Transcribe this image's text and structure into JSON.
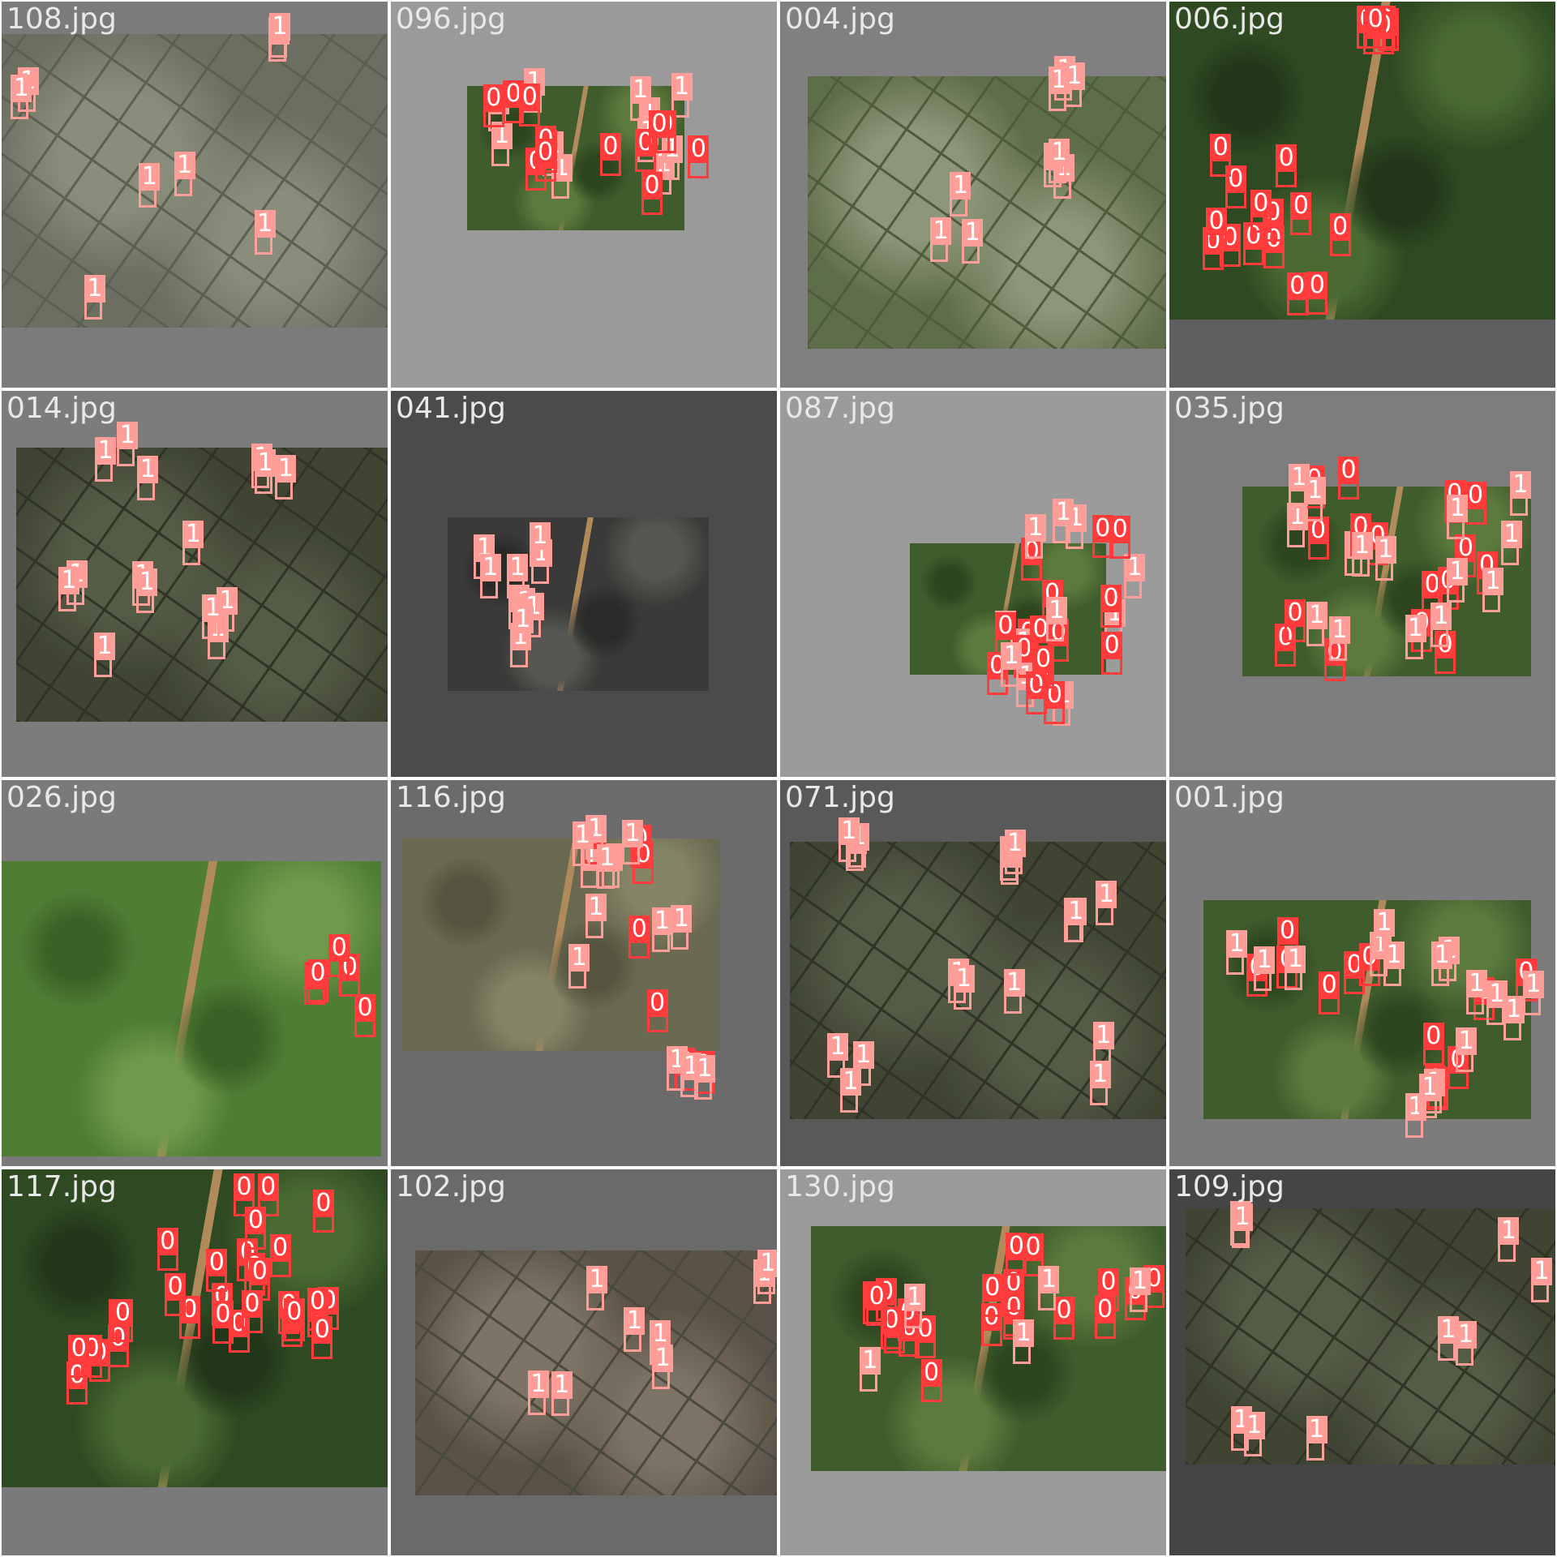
{
  "panel_bg": "#ffffff",
  "classes": {
    "0": {
      "color": "#ff3b3b"
    },
    "1": {
      "color": "#ff9e98"
    }
  },
  "tiles": [
    {
      "name": "108.jpg",
      "bg": "#7b7b7b",
      "scene": "paddy-gray",
      "labels": [
        "1",
        "1",
        "1",
        "1",
        "1",
        "1",
        "1",
        "1"
      ]
    },
    {
      "name": "096.jpg",
      "bg": "#9a9a9a",
      "scene": "village",
      "labels": [
        "1",
        "1",
        "1",
        "1",
        "1",
        "1",
        "1",
        "1",
        "1",
        "1",
        "1",
        "0",
        "0",
        "0",
        "0",
        "0",
        "0",
        "0",
        "0",
        "0",
        "0",
        "0",
        "0",
        "0"
      ]
    },
    {
      "name": "004.jpg",
      "bg": "#808080",
      "scene": "paddy-green",
      "labels": [
        "1",
        "1",
        "1",
        "1",
        "1",
        "1",
        "1",
        "1",
        "1"
      ]
    },
    {
      "name": "006.jpg",
      "bg": "#5e5e5e",
      "scene": "forest",
      "labels": [
        "0",
        "0",
        "0",
        "0",
        "0",
        "0",
        "0",
        "0",
        "0",
        "0",
        "0",
        "0",
        "0",
        "0",
        "0",
        "0",
        "0",
        "0",
        "0",
        "0",
        "0"
      ]
    },
    {
      "name": "014.jpg",
      "bg": "#7c7c7c",
      "scene": "paddy-dark",
      "labels": [
        "1",
        "1",
        "1",
        "1",
        "1",
        "1",
        "1",
        "1",
        "1",
        "1",
        "1",
        "1",
        "1",
        "1",
        "1"
      ]
    },
    {
      "name": "041.jpg",
      "bg": "#4b4b4b",
      "scene": "forest-gray",
      "labels": [
        "1",
        "1",
        "1",
        "1",
        "1",
        "1",
        "1",
        "1",
        "1",
        "1"
      ]
    },
    {
      "name": "087.jpg",
      "bg": "#9b9b9b",
      "scene": "village",
      "labels": [
        "1",
        "1",
        "1",
        "1",
        "0",
        "0",
        "0",
        "0",
        "0",
        "0",
        "0",
        "0",
        "0",
        "1",
        "1",
        "1",
        "0",
        "0",
        "0",
        "0",
        "0",
        "0",
        "0",
        "0",
        "1",
        "1",
        "1",
        "1"
      ]
    },
    {
      "name": "035.jpg",
      "bg": "#7d7d7d",
      "scene": "village",
      "labels": [
        "1",
        "1",
        "1",
        "0",
        "0",
        "0",
        "0",
        "0",
        "0",
        "0",
        "0",
        "0",
        "0",
        "0",
        "0",
        "0",
        "0",
        "0",
        "0",
        "1",
        "1",
        "1",
        "1",
        "1",
        "1",
        "1",
        "1",
        "1",
        "1",
        "1",
        "1"
      ]
    },
    {
      "name": "026.jpg",
      "bg": "#7a7a7a",
      "scene": "green-farm",
      "labels": [
        "0",
        "0",
        "0",
        "0",
        "0"
      ]
    },
    {
      "name": "116.jpg",
      "bg": "#6b6b6b",
      "scene": "scrub",
      "labels": [
        "1",
        "1",
        "1",
        "0",
        "0",
        "0",
        "0",
        "0",
        "0",
        "0",
        "1",
        "1",
        "1",
        "1",
        "1",
        "1",
        "1",
        "1",
        "1",
        "1"
      ]
    },
    {
      "name": "071.jpg",
      "bg": "#595959",
      "scene": "paddy-dark",
      "labels": [
        "1",
        "1",
        "1",
        "1",
        "1",
        "1",
        "1",
        "1",
        "1",
        "1",
        "1",
        "1",
        "1",
        "1",
        "1",
        "1",
        "1"
      ]
    },
    {
      "name": "001.jpg",
      "bg": "#7c7c7c",
      "scene": "village",
      "labels": [
        "0",
        "0",
        "0",
        "0",
        "0",
        "0",
        "0",
        "0",
        "0",
        "0",
        "0",
        "0",
        "1",
        "1",
        "1",
        "1",
        "1",
        "1",
        "1",
        "1",
        "1",
        "1",
        "1",
        "1",
        "1",
        "1",
        "1",
        "1"
      ]
    },
    {
      "name": "117.jpg",
      "bg": "#7a7a7a",
      "scene": "forest",
      "labels": [
        "0",
        "0",
        "0",
        "0",
        "0",
        "0",
        "0",
        "0",
        "0",
        "0",
        "0",
        "0",
        "0",
        "0",
        "0",
        "0",
        "0",
        "0",
        "0",
        "0",
        "0",
        "0",
        "0",
        "0",
        "0",
        "0",
        "0",
        "0",
        "0",
        "0"
      ]
    },
    {
      "name": "102.jpg",
      "bg": "#6a6a6a",
      "scene": "paddy-brown",
      "labels": [
        "1",
        "1",
        "1",
        "1",
        "1",
        "1",
        "1",
        "1"
      ]
    },
    {
      "name": "130.jpg",
      "bg": "#9a9a9a",
      "scene": "village",
      "labels": [
        "0",
        "0",
        "0",
        "0",
        "0",
        "0",
        "0",
        "0",
        "0",
        "0",
        "0",
        "0",
        "0",
        "0",
        "0",
        "0",
        "0",
        "0",
        "0",
        "0",
        "0",
        "1",
        "1",
        "1",
        "1",
        "1"
      ]
    },
    {
      "name": "109.jpg",
      "bg": "#454545",
      "scene": "paddy-dark",
      "labels": [
        "1",
        "1",
        "1",
        "1",
        "1",
        "1",
        "1",
        "1",
        "1"
      ]
    }
  ]
}
